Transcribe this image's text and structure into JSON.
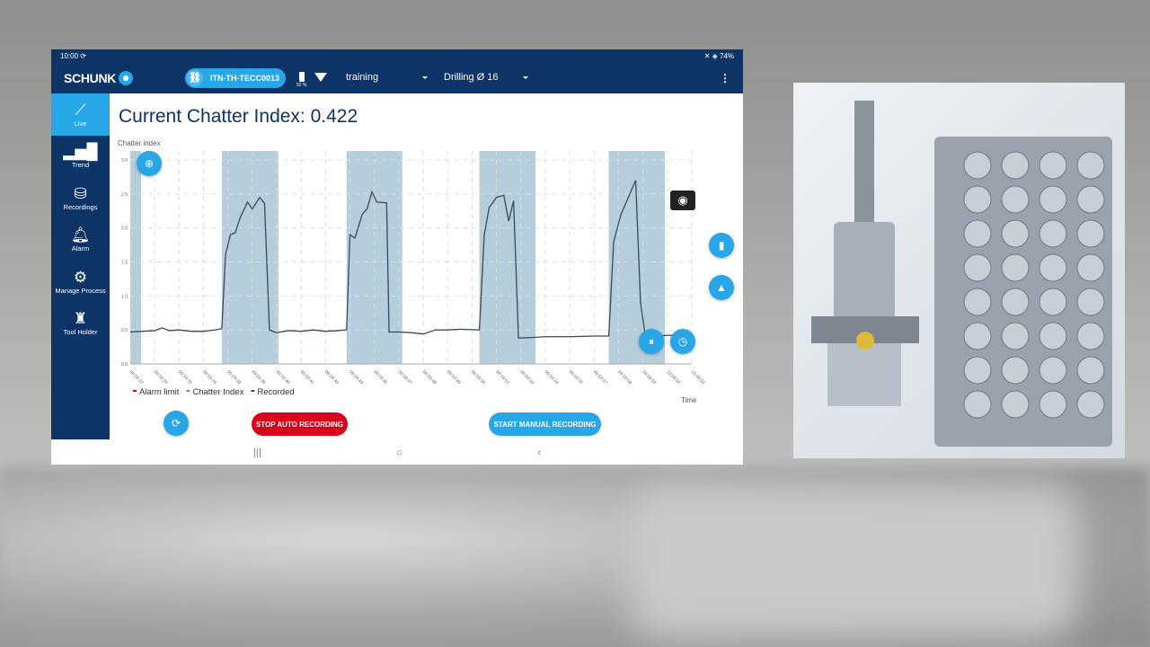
{
  "status_bar": {
    "time": "10:00 ⟳",
    "right": "✕ ◈ 74%"
  },
  "header": {
    "brand": "SCHUNK",
    "device": "ITN-TH-TECC0013",
    "battery": "92 %",
    "process": "training",
    "tool": "Drilling Ø 16",
    "menu_icon": "kebab-icon"
  },
  "sidebar": {
    "items": [
      {
        "label": "Live",
        "icon": "line-chart-icon",
        "active": true
      },
      {
        "label": "Trend",
        "icon": "bar-chart-icon"
      },
      {
        "label": "Recordings",
        "icon": "database-clock-icon"
      },
      {
        "label": "Alarm",
        "icon": "bell-icon"
      },
      {
        "label": "Manage Process",
        "icon": "gear-icon"
      },
      {
        "label": "Tool Holder",
        "icon": "tool-holder-icon"
      }
    ]
  },
  "main": {
    "title": "Current Chatter Index: 0.422",
    "stop_auto": "STOP AUTO RECORDING",
    "start_manual": "START MANUAL RECORDING"
  },
  "colors": {
    "navy": "#0d3466",
    "accent": "#27a6e8",
    "stop": "#d9001b",
    "recorded": "#a9c4d6",
    "line": "#3b4a5c",
    "alarm": "#d9001b"
  },
  "chart_data": {
    "type": "line",
    "ylabel": "Chatter index",
    "xlabel": "Time",
    "ylim": [
      0,
      3
    ],
    "yticks": [
      0.0,
      0.5,
      1.0,
      1.5,
      2.0,
      2.5,
      3.0
    ],
    "xticks": [
      "09:59:22",
      "09:59:24",
      "09:59:25",
      "09:59:26",
      "09:59:38",
      "09:59:39",
      "09:59:40",
      "09:59:41",
      "09:59:43",
      "09:59:44",
      "09:59:45",
      "09:59:47",
      "09:59:48",
      "09:59:49",
      "09:59:50",
      "09:59:51",
      "09:59:53",
      "09:59:54",
      "09:59:55",
      "09:59:57",
      "09:59:58",
      "09:59:59",
      "10:00:02",
      "10:00:03"
    ],
    "legend": [
      "Alarm limit",
      "Chatter Index",
      "Recorded"
    ],
    "legend_placement": "bottom-left",
    "grid": true,
    "recorded_ranges": [
      [
        0,
        0.44
      ],
      [
        3.75,
        6.07
      ],
      [
        8.86,
        11.14
      ],
      [
        14.3,
        16.6
      ],
      [
        19.6,
        21.9
      ]
    ],
    "series": [
      {
        "name": "Chatter Index",
        "points": [
          [
            0,
            0.47
          ],
          [
            0.5,
            0.48
          ],
          [
            1,
            0.49
          ],
          [
            1.3,
            0.53
          ],
          [
            1.6,
            0.49
          ],
          [
            2,
            0.5
          ],
          [
            2.5,
            0.48
          ],
          [
            3,
            0.48
          ],
          [
            3.5,
            0.5
          ],
          [
            3.75,
            0.52
          ],
          [
            3.9,
            1.6
          ],
          [
            4.1,
            1.9
          ],
          [
            4.3,
            1.93
          ],
          [
            4.5,
            2.15
          ],
          [
            4.8,
            2.38
          ],
          [
            5,
            2.28
          ],
          [
            5.3,
            2.45
          ],
          [
            5.5,
            2.36
          ],
          [
            5.7,
            0.5
          ],
          [
            6,
            0.46
          ],
          [
            6.5,
            0.49
          ],
          [
            7,
            0.48
          ],
          [
            7.5,
            0.5
          ],
          [
            8,
            0.48
          ],
          [
            8.5,
            0.49
          ],
          [
            8.86,
            0.5
          ],
          [
            9,
            1.9
          ],
          [
            9.2,
            1.85
          ],
          [
            9.5,
            2.2
          ],
          [
            9.7,
            2.28
          ],
          [
            9.9,
            2.53
          ],
          [
            10.1,
            2.38
          ],
          [
            10.5,
            2.37
          ],
          [
            10.6,
            0.47
          ],
          [
            11,
            0.47
          ],
          [
            11.5,
            0.46
          ],
          [
            12,
            0.44
          ],
          [
            12.5,
            0.5
          ],
          [
            13,
            0.5
          ],
          [
            13.5,
            0.51
          ],
          [
            14.3,
            0.5
          ],
          [
            14.5,
            1.9
          ],
          [
            14.7,
            2.3
          ],
          [
            15,
            2.45
          ],
          [
            15.3,
            2.48
          ],
          [
            15.5,
            2.1
          ],
          [
            15.7,
            2.4
          ],
          [
            15.9,
            0.38
          ],
          [
            16.5,
            0.39
          ],
          [
            17,
            0.4
          ],
          [
            18,
            0.4
          ],
          [
            19,
            0.41
          ],
          [
            19.6,
            0.41
          ],
          [
            19.8,
            1.8
          ],
          [
            20.1,
            2.2
          ],
          [
            20.4,
            2.45
          ],
          [
            20.7,
            2.7
          ],
          [
            20.9,
            0.9
          ],
          [
            21.1,
            0.4
          ],
          [
            22,
            0.42
          ],
          [
            23,
            0.42
          ]
        ]
      }
    ]
  },
  "bottom_nav": {
    "recents": "|||",
    "home": "○",
    "back": "‹"
  }
}
